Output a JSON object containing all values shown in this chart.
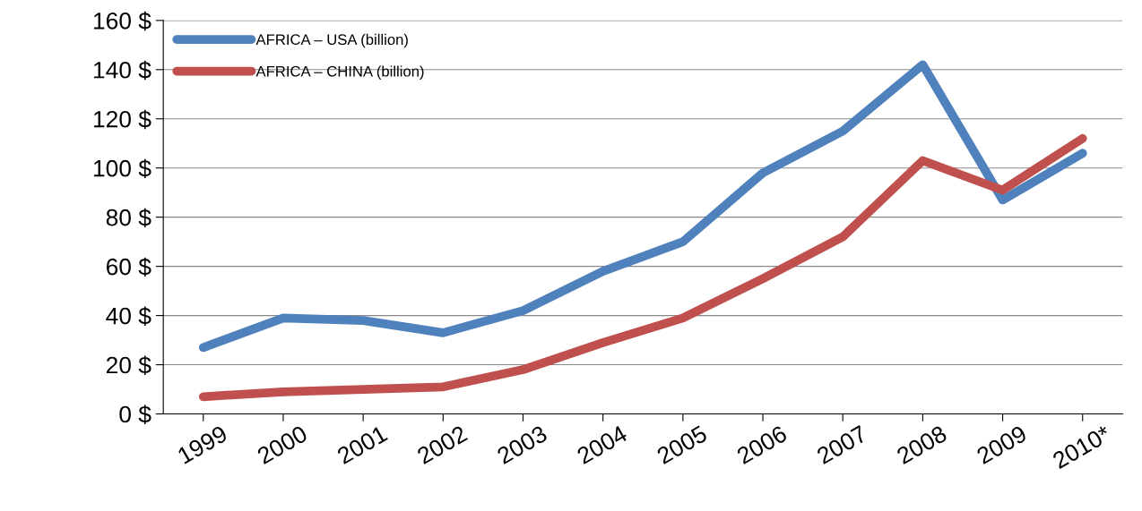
{
  "chart_data": {
    "type": "line",
    "categories": [
      "1999",
      "2000",
      "2001",
      "2002",
      "2003",
      "2004",
      "2005",
      "2006",
      "2007",
      "2008",
      "2009",
      "2010*"
    ],
    "series": [
      {
        "name": "AFRICA – USA (billion)",
        "color": "#4f81bd",
        "values": [
          27,
          39,
          38,
          33,
          42,
          58,
          70,
          98,
          115,
          142,
          87,
          106
        ]
      },
      {
        "name": "AFRICA – CHINA (billion)",
        "color": "#c0504d",
        "values": [
          7,
          9,
          10,
          11,
          18,
          29,
          39,
          55,
          72,
          103,
          91,
          112
        ]
      }
    ],
    "ylim": [
      0,
      160
    ],
    "yticks": [
      {
        "value": 0,
        "label": "0 $"
      },
      {
        "value": 20,
        "label": "20 $"
      },
      {
        "value": 40,
        "label": "40 $"
      },
      {
        "value": 60,
        "label": "60 $"
      },
      {
        "value": 80,
        "label": "80 $"
      },
      {
        "value": 100,
        "label": "100 $"
      },
      {
        "value": 120,
        "label": "120 $"
      },
      {
        "value": 140,
        "label": "140 $"
      },
      {
        "value": 160,
        "label": "160 $"
      }
    ],
    "grid": "y",
    "legend": "top left",
    "marker": "none",
    "line_style": "solid"
  }
}
